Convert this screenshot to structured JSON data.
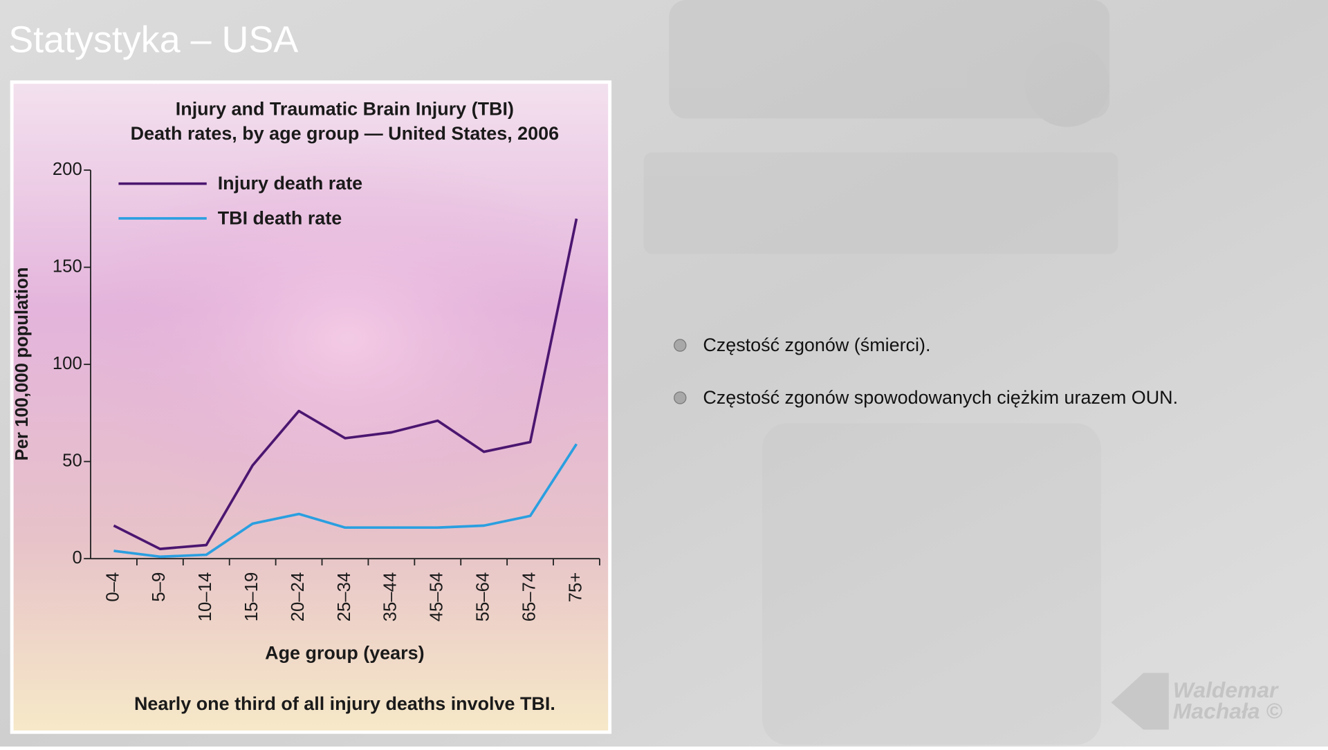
{
  "slide": {
    "title": "Statystyka – USA",
    "bullets": [
      "Częstość zgonów (śmierci).",
      "Częstość zgonów spowodowanych ciężkim urazem OUN."
    ],
    "watermark": [
      "Waldemar",
      "Machała ©"
    ]
  },
  "chart_data": {
    "type": "line",
    "title": "Injury and Traumatic Brain Injury (TBI)",
    "subtitle": "Death rates, by age group — United States, 2006",
    "ylabel": "Per 100,000 population",
    "xlabel": "Age group (years)",
    "annotation": "Nearly one third of all injury deaths involve TBI.",
    "categories": [
      "0–4",
      "5–9",
      "10–14",
      "15–19",
      "20–24",
      "25–34",
      "35–44",
      "45–54",
      "55–64",
      "65–74",
      "75+"
    ],
    "series": [
      {
        "name": "Injury death rate",
        "color": "#4b1670",
        "values": [
          17,
          5,
          7,
          48,
          76,
          62,
          65,
          71,
          55,
          60,
          175
        ]
      },
      {
        "name": "TBI death rate",
        "color": "#2a9fe0",
        "values": [
          4,
          1,
          2,
          18,
          23,
          16,
          16,
          16,
          17,
          22,
          59
        ]
      }
    ],
    "ylim": [
      0,
      200
    ],
    "yticks": [
      0,
      50,
      100,
      150,
      200
    ],
    "legend_position": "upper left",
    "grid": false
  }
}
